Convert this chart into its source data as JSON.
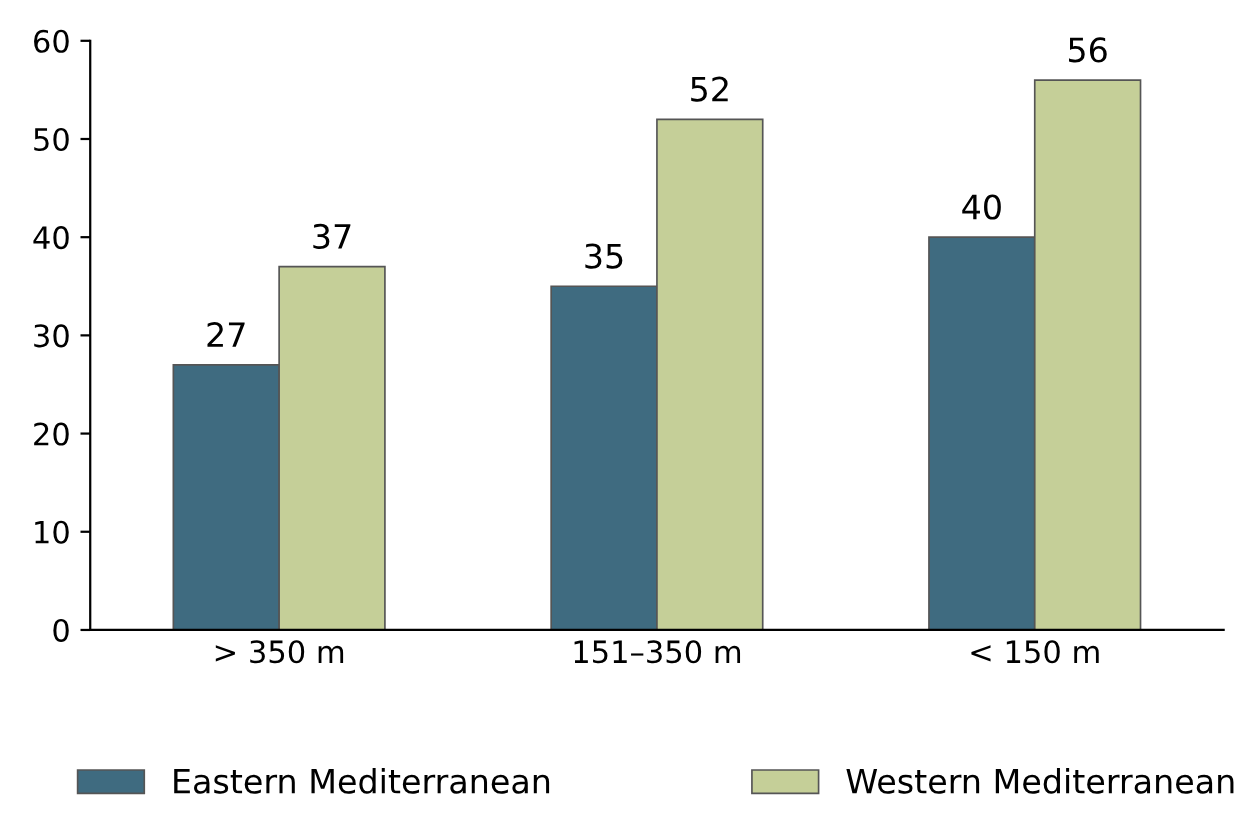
{
  "chart_data": {
    "type": "bar",
    "categories": [
      "> 350 m",
      "151–350 m",
      "< 150 m"
    ],
    "series": [
      {
        "name": "Eastern Mediterranean",
        "color": "#3f6b80",
        "values": [
          27,
          35,
          40
        ]
      },
      {
        "name": "Western Mediterranean",
        "color": "#c5cf98",
        "values": [
          37,
          52,
          56
        ]
      }
    ],
    "ylim": [
      0,
      60
    ],
    "yticks": [
      0,
      10,
      20,
      30,
      40,
      50,
      60
    ],
    "grid": false,
    "legend": "bottom",
    "data_labels": true
  }
}
